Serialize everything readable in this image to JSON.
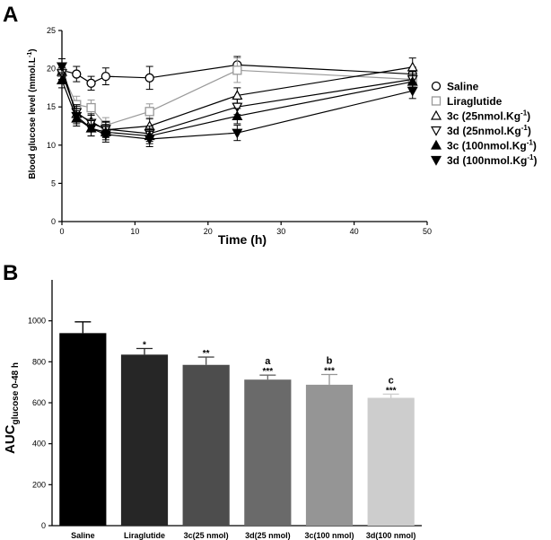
{
  "chart_data": [
    {
      "panel": "A",
      "type": "line",
      "xlabel": "Time (h)",
      "ylabel": "Blood glucose level (mmol.L",
      "ylabel_sup": "-1",
      "ylabel_end": ")",
      "xlim": [
        0,
        50
      ],
      "ylim": [
        0,
        25
      ],
      "xticks": [
        "0",
        "10",
        "20",
        "30",
        "40",
        "50"
      ],
      "yticks": [
        "0",
        "5",
        "10",
        "15",
        "20",
        "25"
      ],
      "x": [
        0,
        2,
        4,
        6,
        12,
        24,
        48
      ],
      "series": [
        {
          "name": "Saline",
          "legend_main": "Saline",
          "legend_sup": "",
          "legend_end": "",
          "marker": "circle-open",
          "color": "#000000",
          "values": [
            19.8,
            19.3,
            18.1,
            19.0,
            18.8,
            20.5,
            19.3
          ],
          "err": [
            0.8,
            1.0,
            0.9,
            1.1,
            1.5,
            1.1,
            0.9
          ]
        },
        {
          "name": "Liraglutide",
          "legend_main": "Liraglutide",
          "legend_sup": "",
          "legend_end": "",
          "marker": "square-open",
          "color": "#999999",
          "values": [
            19.5,
            15.3,
            14.9,
            12.6,
            14.4,
            19.8,
            18.6
          ],
          "err": [
            1.0,
            1.1,
            1.0,
            1.0,
            1.0,
            1.6,
            1.2
          ]
        },
        {
          "name": "3c (25nmol.Kg-1)",
          "legend_main": "3c (25nmol.Kg",
          "legend_sup": "-1",
          "legend_end": ")",
          "marker": "triangle-up-open",
          "color": "#000000",
          "values": [
            19.6,
            14.1,
            13.1,
            12.0,
            12.5,
            16.5,
            20.2
          ],
          "err": [
            1.0,
            1.0,
            1.0,
            1.0,
            1.0,
            1.0,
            1.2
          ]
        },
        {
          "name": "3d (25nmol.Kg-1)",
          "legend_main": "3d (25nmol.Kg",
          "legend_sup": "-1",
          "legend_end": ")",
          "marker": "triangle-down-open",
          "color": "#000000",
          "values": [
            19.4,
            14.3,
            12.9,
            12.1,
            11.5,
            15.0,
            18.6
          ],
          "err": [
            1.0,
            1.0,
            1.0,
            1.0,
            1.0,
            1.0,
            1.0
          ]
        },
        {
          "name": "3c (100nmol.Kg-1)",
          "legend_main": "3c (100nmol.Kg",
          "legend_sup": "-1",
          "legend_end": ")",
          "marker": "triangle-up-filled",
          "color": "#000000",
          "values": [
            18.5,
            13.5,
            12.2,
            11.7,
            11.2,
            13.8,
            18.3
          ],
          "err": [
            1.0,
            1.0,
            1.0,
            1.0,
            1.0,
            1.0,
            1.0
          ]
        },
        {
          "name": "3d (100nmol.Kg-1)",
          "legend_main": "3d (100nmol.Kg",
          "legend_sup": "-1",
          "legend_end": ")",
          "marker": "triangle-down-filled",
          "color": "#000000",
          "values": [
            20.3,
            13.8,
            12.2,
            11.4,
            10.8,
            11.6,
            17.1
          ],
          "err": [
            1.0,
            1.0,
            1.0,
            1.0,
            1.0,
            1.0,
            1.0
          ]
        }
      ]
    },
    {
      "panel": "B",
      "type": "bar",
      "ylabel_main": "AUC",
      "ylabel_sub": "glucose 0-48 h",
      "ylim": [
        0,
        1200
      ],
      "yticks": [
        "0",
        "200",
        "400",
        "600",
        "800",
        "1000"
      ],
      "categories": [
        "Saline",
        "Liraglutide",
        "3c(25 nmol)",
        "3d(25 nmol)",
        "3c(100 nmol)",
        "3d(100 nmol)"
      ],
      "values": [
        940,
        835,
        785,
        713,
        688,
        624
      ],
      "err": [
        55,
        30,
        38,
        22,
        50,
        18
      ],
      "colors": [
        "#000000",
        "#262626",
        "#4d4d4d",
        "#6a6a6a",
        "#959595",
        "#cdcdcd"
      ],
      "stars": [
        "",
        "*",
        "**",
        "***",
        "***",
        "***"
      ],
      "letters": [
        "",
        "",
        "",
        "a",
        "b",
        "c"
      ]
    }
  ]
}
